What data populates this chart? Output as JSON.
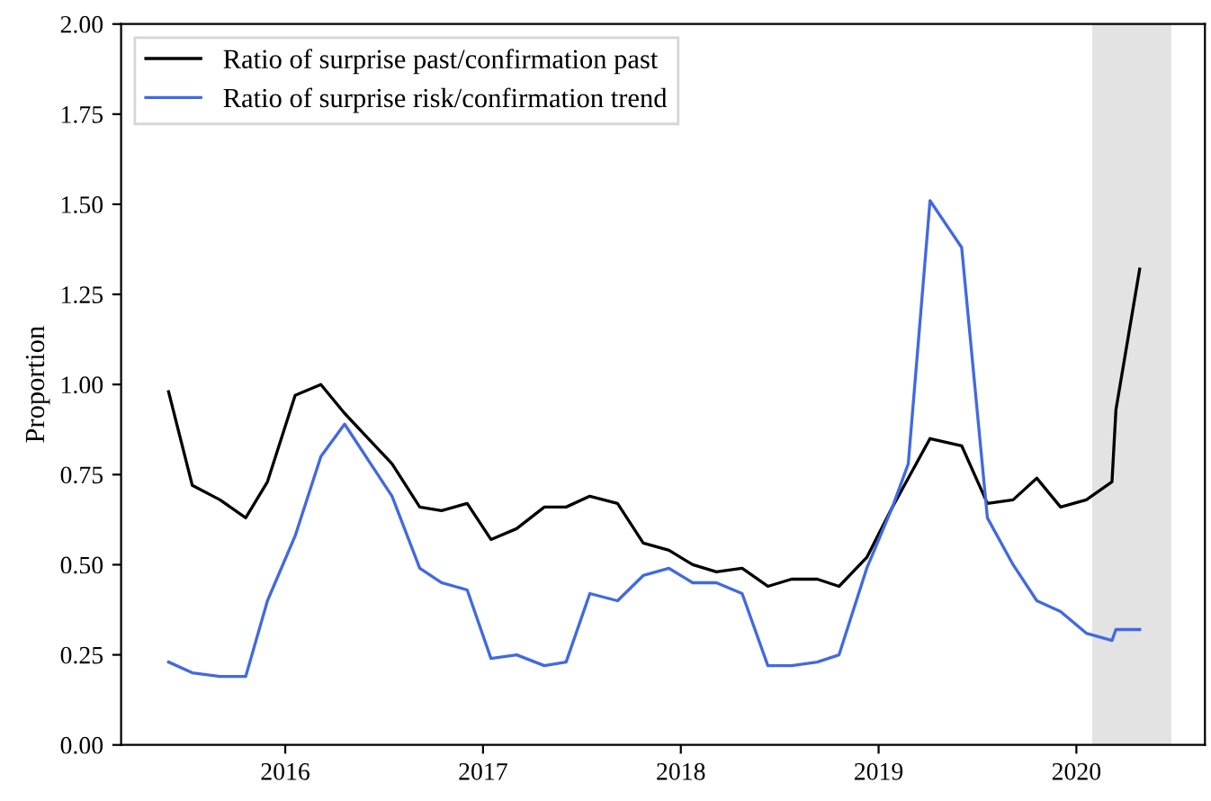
{
  "chart_data": {
    "type": "line",
    "ylabel": "Proportion",
    "xlim": [
      2015.17,
      2020.65
    ],
    "xticks": [
      2016,
      2017,
      2018,
      2019,
      2020
    ],
    "ylim": [
      0,
      2
    ],
    "yticks": [
      {
        "value": 0,
        "label": "0.00"
      },
      {
        "value": 0.25,
        "label": "0.25"
      },
      {
        "value": 0.5,
        "label": "0.50"
      },
      {
        "value": 0.75,
        "label": "0.75"
      },
      {
        "value": 1,
        "label": "1.00"
      },
      {
        "value": 1.25,
        "label": "1.25"
      },
      {
        "value": 1.5,
        "label": "1.50"
      },
      {
        "value": 1.75,
        "label": "1.75"
      },
      {
        "value": 2,
        "label": "2.00"
      }
    ],
    "grid": false,
    "legend": "top left",
    "bands": [
      {
        "axis": "x",
        "from": 2020.08,
        "to": 2020.48,
        "color": "#e3e3e3"
      }
    ],
    "series": [
      {
        "name": "Ratio of surprise past/confirmation past",
        "color": "#000000",
        "x": [
          2015.41,
          2015.53,
          2015.67,
          2015.8,
          2015.91,
          2016.05,
          2016.18,
          2016.3,
          2016.42,
          2016.54,
          2016.68,
          2016.79,
          2016.92,
          2017.04,
          2017.17,
          2017.31,
          2017.42,
          2017.54,
          2017.68,
          2017.81,
          2017.94,
          2018.06,
          2018.18,
          2018.31,
          2018.44,
          2018.56,
          2018.69,
          2018.8,
          2018.94,
          2019.07,
          2019.26,
          2019.42,
          2019.55,
          2019.68,
          2019.8,
          2019.92,
          2020.05,
          2020.18,
          2020.2,
          2020.32
        ],
        "values": [
          0.98,
          0.72,
          0.68,
          0.63,
          0.73,
          0.97,
          1.0,
          0.92,
          0.85,
          0.78,
          0.66,
          0.65,
          0.67,
          0.57,
          0.6,
          0.66,
          0.66,
          0.69,
          0.67,
          0.56,
          0.54,
          0.5,
          0.48,
          0.49,
          0.44,
          0.46,
          0.46,
          0.44,
          0.52,
          0.66,
          0.85,
          0.83,
          0.67,
          0.68,
          0.74,
          0.66,
          0.68,
          0.73,
          0.93,
          1.32
        ]
      },
      {
        "name": "Ratio of surprise risk/confirmation trend",
        "color": "#4169e1",
        "x": [
          2015.41,
          2015.53,
          2015.67,
          2015.8,
          2015.91,
          2016.05,
          2016.18,
          2016.3,
          2016.42,
          2016.54,
          2016.68,
          2016.79,
          2016.92,
          2017.04,
          2017.17,
          2017.31,
          2017.42,
          2017.54,
          2017.68,
          2017.81,
          2017.94,
          2018.06,
          2018.18,
          2018.31,
          2018.44,
          2018.56,
          2018.69,
          2018.8,
          2018.94,
          2019.07,
          2019.15,
          2019.26,
          2019.42,
          2019.55,
          2019.68,
          2019.8,
          2019.92,
          2020.05,
          2020.18,
          2020.2,
          2020.32
        ],
        "values": [
          0.23,
          0.2,
          0.19,
          0.19,
          0.4,
          0.58,
          0.8,
          0.89,
          0.79,
          0.69,
          0.49,
          0.45,
          0.43,
          0.24,
          0.25,
          0.22,
          0.23,
          0.42,
          0.4,
          0.47,
          0.49,
          0.45,
          0.45,
          0.42,
          0.22,
          0.22,
          0.23,
          0.25,
          0.49,
          0.66,
          0.78,
          1.51,
          1.38,
          0.63,
          0.5,
          0.4,
          0.37,
          0.31,
          0.29,
          0.32,
          0.32
        ]
      }
    ]
  }
}
